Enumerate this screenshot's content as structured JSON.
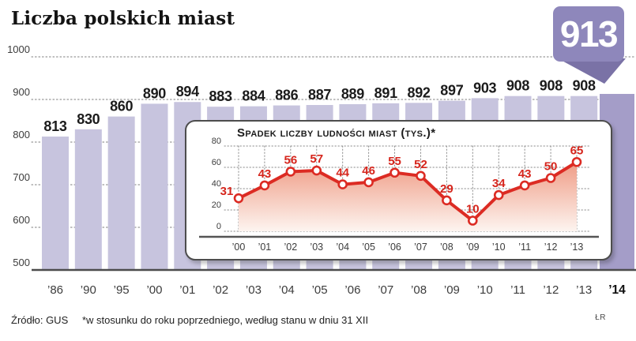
{
  "header": {
    "title": "Liczba polskich miast",
    "badge_value": "913"
  },
  "footer": {
    "source": "Źródło: GUS",
    "note": "*w stosunku do roku poprzedniego, według stanu w dniu 31 XII",
    "credit": "ŁR"
  },
  "colors": {
    "bar": "#c7c4de",
    "bar_highlight": "#a49dc8",
    "badge": "#8e87bb",
    "badge_tail": "#7a72a6",
    "line": "#dc2b23",
    "value_label": "#d6251c",
    "area_top": "#ef9c85",
    "area_bottom": "#fdf4f0"
  },
  "chart_data": [
    {
      "type": "bar",
      "title": "Liczba polskich miast",
      "categories": [
        "’86",
        "’90",
        "’95",
        "’00",
        "’01",
        "’02",
        "’03",
        "’04",
        "’05",
        "’06",
        "’07",
        "’08",
        "’09",
        "’10",
        "’11",
        "’12",
        "’13",
        "’14"
      ],
      "values": [
        813,
        830,
        860,
        890,
        894,
        883,
        884,
        886,
        887,
        889,
        891,
        892,
        897,
        903,
        908,
        908,
        908,
        913
      ],
      "xlabel": "",
      "ylabel": "",
      "ylim": [
        500,
        1000
      ],
      "yticks": [
        500,
        600,
        700,
        800,
        900,
        1000
      ],
      "grid": "horizontal-dotted",
      "legend": "none",
      "notes": "last bar (913, year ’14) highlighted darker; its value shown in speech-bubble badge instead of bar label"
    },
    {
      "type": "line",
      "title": "Spadek liczby ludności miast (tys.)*",
      "categories": [
        "’00",
        "’01",
        "’02",
        "’03",
        "’04",
        "’05",
        "’06",
        "’07",
        "’08",
        "’09",
        "’10",
        "’11",
        "’12",
        "’13"
      ],
      "values": [
        31,
        43,
        56,
        57,
        44,
        46,
        55,
        52,
        29,
        10,
        34,
        43,
        50,
        65
      ],
      "xlabel": "",
      "ylabel": "",
      "ylim": [
        0,
        80
      ],
      "yticks": [
        0,
        20,
        40,
        60,
        80
      ],
      "grid": "dotted-both",
      "legend": "none",
      "notes": "red line, open circle markers, red data labels, salmon-to-white area fill"
    }
  ]
}
